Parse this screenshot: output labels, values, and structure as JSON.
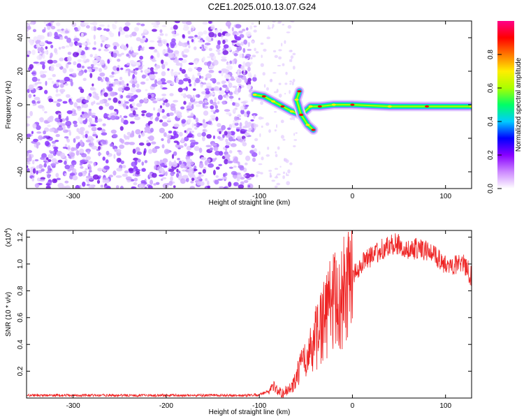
{
  "title": "C2E1.2025.010.13.07.G24",
  "chart_data": [
    {
      "type": "heatmap",
      "xlabel": "Height of straight line (km)",
      "ylabel": "Frequency (Hz)",
      "xlim": [
        -350,
        128
      ],
      "ylim": [
        -50,
        50
      ],
      "xticks": [
        -300,
        -200,
        -100,
        0,
        100
      ],
      "yticks": [
        -40,
        -20,
        0,
        20,
        40
      ],
      "colorbar": {
        "label": "Normalized spectral amplitude",
        "range": [
          0,
          1
        ],
        "ticks": [
          "0.0",
          "0.2",
          "0.4",
          "0.6",
          "0.8"
        ],
        "colors": [
          "#ffffff",
          "#cc88ff",
          "#8800ff",
          "#0000ff",
          "#00ccff",
          "#00ff66",
          "#aaff00",
          "#ffee00",
          "#ff7700",
          "#ff0000",
          "#ff0088"
        ]
      },
      "features": {
        "noise_region_x": [
          -350,
          -105
        ],
        "trace": [
          {
            "x": -105,
            "y": 6
          },
          {
            "x": -95,
            "y": 5
          },
          {
            "x": -85,
            "y": 2
          },
          {
            "x": -75,
            "y": -1
          },
          {
            "x": -65,
            "y": -4
          },
          {
            "x": -55,
            "y": -6
          },
          {
            "x": -45,
            "y": -1
          },
          {
            "x": -35,
            "y": -1
          },
          {
            "x": -20,
            "y": 0
          },
          {
            "x": 0,
            "y": 0
          },
          {
            "x": 40,
            "y": -1
          },
          {
            "x": 80,
            "y": -1
          },
          {
            "x": 128,
            "y": -1
          }
        ],
        "branch": [
          {
            "x": -57,
            "y": 8
          },
          {
            "x": -60,
            "y": 3
          },
          {
            "x": -55,
            "y": -6
          },
          {
            "x": -48,
            "y": -12
          },
          {
            "x": -42,
            "y": -15
          }
        ]
      }
    },
    {
      "type": "line",
      "xlabel": "Height of straight line (km)",
      "ylabel": "SNR (10 * v/v)",
      "y_multiplier": "(x10",
      "y_multiplier_exp": "4",
      "y_multiplier_close": ")",
      "xlim": [
        -350,
        128
      ],
      "ylim": [
        0,
        1.25
      ],
      "xticks": [
        -300,
        -200,
        -100,
        0,
        100
      ],
      "yticks": [
        "0.2",
        "0.4",
        "0.6",
        "0.8",
        "1.0",
        "1.2"
      ],
      "color": "#ee2222",
      "series": [
        {
          "x": [
            -350,
            -300,
            -250,
            -200,
            -150,
            -110,
            -100,
            -90,
            -85,
            -80,
            -75,
            -70,
            -65,
            -60,
            -55,
            -50,
            -45,
            -40,
            -35,
            -30,
            -25,
            -20,
            -15,
            -10,
            -5,
            0,
            5,
            10,
            15,
            20,
            30,
            40,
            50,
            60,
            70,
            80,
            90,
            100,
            110,
            120,
            128
          ],
          "y": [
            0.02,
            0.02,
            0.02,
            0.02,
            0.02,
            0.02,
            0.025,
            0.05,
            0.1,
            0.05,
            0.04,
            0.06,
            0.08,
            0.15,
            0.25,
            0.3,
            0.35,
            0.45,
            0.5,
            0.6,
            0.7,
            0.75,
            0.7,
            0.8,
            0.85,
            0.9,
            0.95,
            1.0,
            1.05,
            1.05,
            1.1,
            1.15,
            1.15,
            1.1,
            1.12,
            1.1,
            1.05,
            1.0,
            1.0,
            1.0,
            0.9
          ]
        }
      ]
    }
  ]
}
